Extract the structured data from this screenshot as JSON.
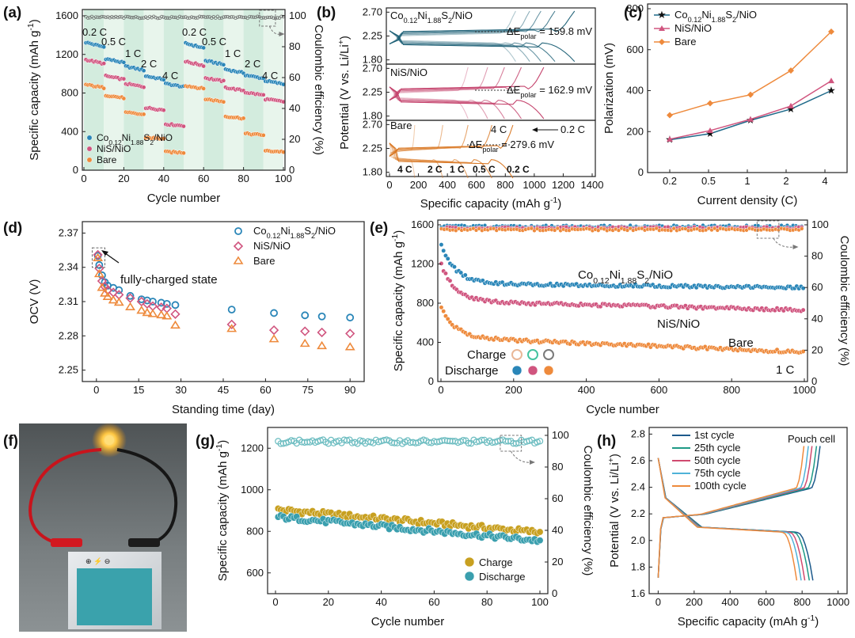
{
  "colors": {
    "co": "#2a86b8",
    "co_line": "#1f6a8a",
    "nis": "#d0557f",
    "bare": "#ee8a3c",
    "gold": "#c8a020",
    "teal": "#3a9fae",
    "ce_teal": "#6bbcc0"
  },
  "chart_data": [
    {
      "id": "a",
      "type": "scatter",
      "panel_label": "(a)",
      "xlabel": "Cycle number",
      "ylabel": "Specific capacity (mAh g",
      "ylabel_sup": "-1",
      "ylabel_end": ")",
      "y2label": "Coulombic efficiency (%)",
      "xlim": [
        0,
        100
      ],
      "ylim": [
        0,
        1600
      ],
      "y2lim": [
        0,
        100
      ],
      "xticks": [
        "0",
        "20",
        "40",
        "60",
        "80",
        "100"
      ],
      "yticks": [
        "0",
        "400",
        "800",
        "1200",
        "1600"
      ],
      "y2ticks": [
        "0",
        "20",
        "40",
        "60",
        "80",
        "100"
      ],
      "rate_labels": [
        "0.2 C",
        "0.5 C",
        "1 C",
        "2 C",
        "4 C",
        "0.2 C",
        "0.5 C",
        "1 C",
        "2 C",
        "4 C"
      ],
      "rate_blocks": [
        0,
        10,
        20,
        30,
        40,
        50,
        60,
        70,
        80,
        90,
        100
      ],
      "series": [
        {
          "name": "Co0.12Ni1.88S2/NiO",
          "levels": [
            1330,
            1160,
            1080,
            980,
            900,
            1320,
            1140,
            1050,
            990,
            930
          ]
        },
        {
          "name": "NiS/NiO",
          "levels": [
            1150,
            980,
            900,
            650,
            480,
            1130,
            960,
            860,
            810,
            740
          ]
        },
        {
          "name": "Bare",
          "levels": [
            890,
            780,
            600,
            340,
            190,
            880,
            740,
            560,
            380,
            200
          ]
        }
      ],
      "ce": 99,
      "legend": [
        {
          "pre": "Co",
          "s1": "0.12",
          "mid": "Ni",
          "s2": "1.88",
          "mid2": "S",
          "s3": "2",
          "post": "/NiO"
        },
        {
          "pre": "NiS/NiO"
        },
        {
          "pre": "Bare"
        }
      ]
    },
    {
      "id": "b",
      "type": "line",
      "panel_label": "(b)",
      "xlabel": "Specific capacity (mAh g",
      "xlabel_sup": "-1",
      "xlabel_end": ")",
      "ylabel": "Potential (V vs. Li/Li",
      "ylabel_sup": "+",
      "ylabel_end": ")",
      "xlim": [
        0,
        1400
      ],
      "xticks": [
        "0",
        "200",
        "400",
        "600",
        "800",
        "1000",
        "1200",
        "1400"
      ],
      "subplots": [
        {
          "name": "Co0.12Ni1.88S2/NiO",
          "yticks": [
            "1.80",
            "2.25",
            "2.70"
          ],
          "delta": "159.8 mV",
          "capacities": [
            900,
            1000,
            1080,
            1180,
            1320
          ],
          "plateau": 2.2
        },
        {
          "name": "NiS/NiO",
          "yticks": [
            "1.80",
            "2.25",
            "2.70"
          ],
          "delta": "162.9 mV",
          "capacities": [
            560,
            700,
            820,
            940,
            1100
          ],
          "plateau": 2.18
        },
        {
          "name": "Bare",
          "yticks": [
            "1.80",
            "2.25",
            "2.70"
          ],
          "delta": "279.6 mV",
          "capacities": [
            180,
            380,
            560,
            730,
            880
          ],
          "plateau": 2.12
        }
      ],
      "rate_text": [
        "4 C",
        "2 C",
        "1 C",
        "0.5 C",
        "0.2 C"
      ],
      "arrow_from": "4 C",
      "arrow_to": "0.2 C",
      "delta_prefix": "ΔE",
      "delta_sub": "polar",
      "delta_eq": " = "
    },
    {
      "id": "c",
      "type": "line",
      "panel_label": "(c)",
      "xlabel": "Current density (C)",
      "ylabel": "Polarization (mV)",
      "categories": [
        "0.2",
        "0.5",
        "1",
        "2",
        "4"
      ],
      "ylim": [
        0,
        800
      ],
      "yticks": [
        "0",
        "200",
        "400",
        "600",
        "800"
      ],
      "series": [
        {
          "name": "Co0.12Ni1.88S2/NiO",
          "values": [
            160,
            190,
            255,
            310,
            400
          ]
        },
        {
          "name": "NiS/NiO",
          "values": [
            163,
            205,
            260,
            325,
            448
          ]
        },
        {
          "name": "Bare",
          "values": [
            280,
            338,
            380,
            498,
            688
          ]
        }
      ],
      "legend": [
        {
          "pre": "Co",
          "s1": "0.12",
          "mid": "Ni",
          "s2": "1.88",
          "mid2": "S",
          "s3": "2",
          "post": "/NiO"
        },
        {
          "pre": "NiS/NiO"
        },
        {
          "pre": "Bare"
        }
      ]
    },
    {
      "id": "d",
      "type": "scatter",
      "panel_label": "(d)",
      "xlabel": "Standing time (day)",
      "ylabel": "OCV (V)",
      "xlim": [
        -5,
        95
      ],
      "ylim": [
        2.24,
        2.38
      ],
      "xticks": [
        "0",
        "15",
        "30",
        "45",
        "60",
        "75",
        "90"
      ],
      "yticks": [
        "2.25",
        "2.28",
        "2.31",
        "2.34",
        "2.37"
      ],
      "annotation": "fully-charged state",
      "series": [
        {
          "name": "Co0.12Ni1.88S2/NiO",
          "x": [
            0.5,
            1,
            2,
            3,
            4,
            6,
            8,
            12,
            16,
            18,
            20,
            23,
            25,
            28,
            48,
            63,
            74,
            80,
            90
          ],
          "y": [
            2.35,
            2.342,
            2.333,
            2.327,
            2.324,
            2.322,
            2.32,
            2.315,
            2.312,
            2.311,
            2.31,
            2.309,
            2.308,
            2.307,
            2.303,
            2.3,
            2.298,
            2.297,
            2.296
          ]
        },
        {
          "name": "NiS/NiO",
          "x": [
            0.5,
            1,
            2,
            3,
            4,
            6,
            8,
            12,
            16,
            18,
            20,
            23,
            25,
            28,
            48,
            63,
            74,
            80,
            90
          ],
          "y": [
            2.351,
            2.339,
            2.328,
            2.323,
            2.32,
            2.318,
            2.316,
            2.313,
            2.31,
            2.308,
            2.306,
            2.305,
            2.304,
            2.299,
            2.29,
            2.285,
            2.284,
            2.283,
            2.282
          ]
        },
        {
          "name": "Bare",
          "x": [
            0.5,
            1,
            2,
            3,
            4,
            6,
            8,
            12,
            16,
            18,
            20,
            23,
            25,
            28,
            48,
            63,
            74,
            80,
            90
          ],
          "y": [
            2.348,
            2.334,
            2.322,
            2.317,
            2.314,
            2.311,
            2.309,
            2.305,
            2.302,
            2.3,
            2.299,
            2.298,
            2.297,
            2.289,
            2.286,
            2.277,
            2.273,
            2.271,
            2.27
          ]
        }
      ],
      "legend": [
        {
          "pre": "Co",
          "s1": "0.12",
          "mid": "Ni",
          "s2": "1.88",
          "mid2": "S",
          "s3": "2",
          "post": "/NiO"
        },
        {
          "pre": "NiS/NiO"
        },
        {
          "pre": "Bare"
        }
      ]
    },
    {
      "id": "e",
      "type": "scatter",
      "panel_label": "(e)",
      "xlabel": "Cycle number",
      "ylabel": "Specific capacity (mAh g",
      "ylabel_sup": "-1",
      "ylabel_end": ")",
      "y2label": "Coulombic efficiency (%)",
      "xlim": [
        0,
        1000
      ],
      "ylim": [
        0,
        1600
      ],
      "y2lim": [
        0,
        100
      ],
      "xticks": [
        "0",
        "200",
        "400",
        "600",
        "800",
        "1000"
      ],
      "yticks": [
        "0",
        "400",
        "800",
        "1200",
        "1600"
      ],
      "y2ticks": [
        "0",
        "20",
        "40",
        "60",
        "80",
        "100"
      ],
      "series": [
        {
          "name": "Co0.12Ni1.88S2/NiO",
          "start": 1400,
          "plateau": 1000,
          "end": 960
        },
        {
          "name": "NiS/NiO",
          "start": 1200,
          "plateau": 820,
          "end": 730
        },
        {
          "name": "Bare",
          "start": 760,
          "plateau": 450,
          "end": 300
        }
      ],
      "ce": [
        99,
        98,
        97
      ],
      "label_co": {
        "pre": "Co",
        "s1": "0.12",
        "mid": "Ni",
        "s2": "1.88",
        "mid2": "S",
        "s3": "2",
        "post": "/NiO"
      },
      "label_nis": "NiS/NiO",
      "label_bare": "Bare",
      "rate": "1 C",
      "legend_charge": "Charge",
      "legend_discharge": "Discharge"
    },
    {
      "id": "g",
      "type": "scatter",
      "panel_label": "(g)",
      "xlabel": "Cycle number",
      "ylabel": "Specific capacity (mAh g",
      "ylabel_sup": "-1",
      "ylabel_end": ")",
      "y2label": "Coulombic efficiency (%)",
      "xlim": [
        0,
        100
      ],
      "ylim": [
        500,
        1300
      ],
      "y2lim": [
        0,
        105
      ],
      "xticks": [
        "0",
        "20",
        "40",
        "60",
        "80",
        "100"
      ],
      "yticks": [
        "600",
        "800",
        "1000",
        "1200"
      ],
      "y2ticks": [
        "0",
        "20",
        "40",
        "60",
        "80",
        "100"
      ],
      "series": [
        {
          "name": "Charge",
          "start": 905,
          "end": 795
        },
        {
          "name": "Discharge",
          "start": 870,
          "end": 755
        }
      ],
      "ce": 96,
      "legend": [
        "Charge",
        "Discharge"
      ]
    },
    {
      "id": "h",
      "type": "line",
      "panel_label": "(h)",
      "xlabel": "Specific capacity (mAh g",
      "xlabel_sup": "-1",
      "xlabel_end": ")",
      "ylabel": "Potential (V vs. Li/Li",
      "ylabel_sup": "+",
      "ylabel_end": ")",
      "xlim": [
        -50,
        1050
      ],
      "ylim": [
        1.6,
        2.85
      ],
      "xticks": [
        "0",
        "200",
        "400",
        "600",
        "800",
        "1000"
      ],
      "yticks": [
        "1.6",
        "1.8",
        "2.0",
        "2.2",
        "2.4",
        "2.6",
        "2.8"
      ],
      "title": "Pouch cell",
      "series": [
        {
          "name": "1st cycle",
          "capacity": 860
        },
        {
          "name": "25th cycle",
          "capacity": 840
        },
        {
          "name": "50th cycle",
          "capacity": 815
        },
        {
          "name": "75th cycle",
          "capacity": 795
        },
        {
          "name": "100th cycle",
          "capacity": 770
        }
      ]
    }
  ],
  "photo": {
    "panel_label": "(f)"
  }
}
